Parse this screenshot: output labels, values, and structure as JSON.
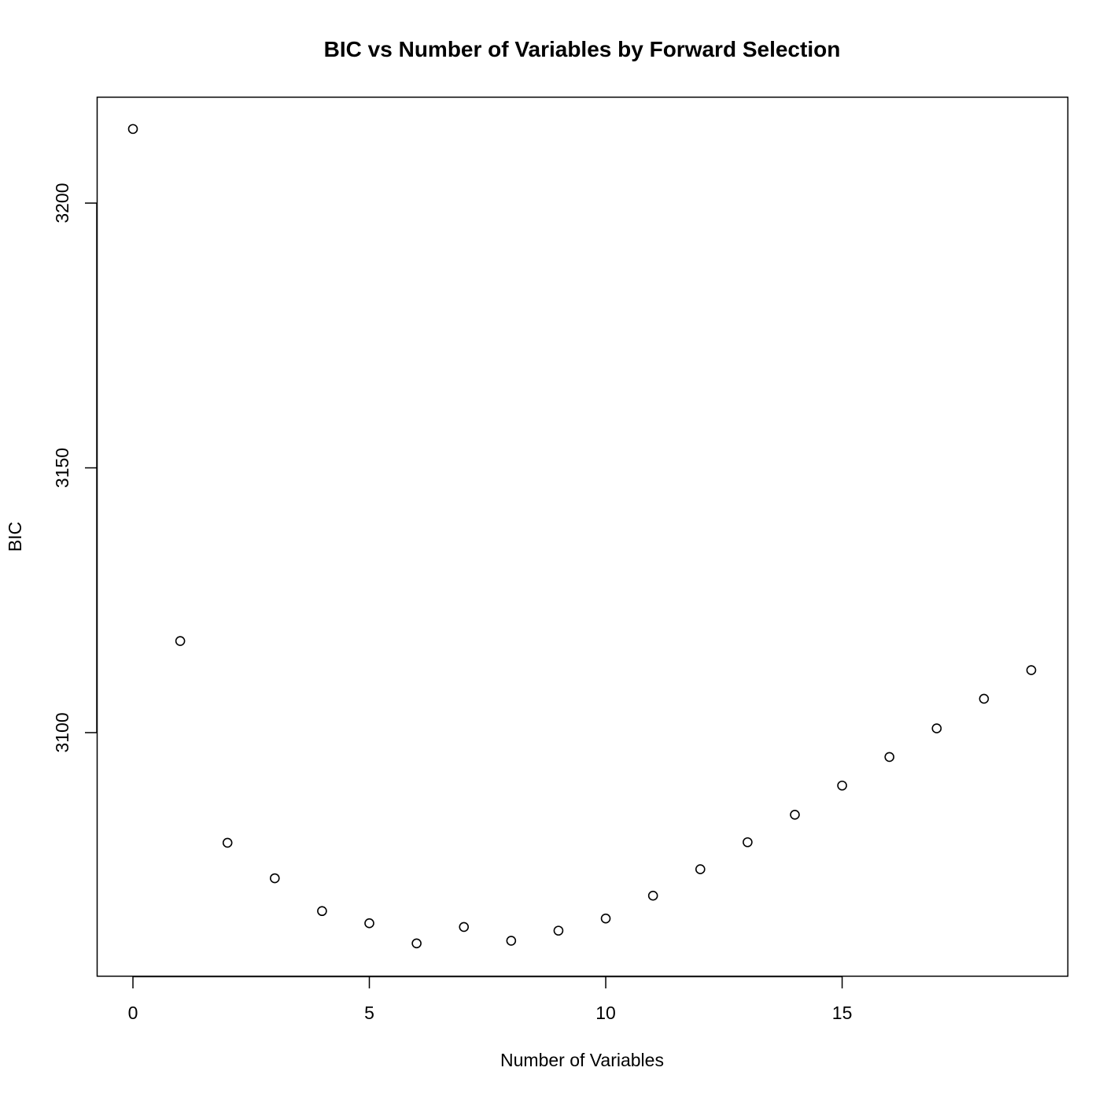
{
  "chart_data": {
    "type": "scatter",
    "title": "BIC vs Number of Variables by Forward Selection",
    "xlabel": "Number of Variables",
    "ylabel": "BIC",
    "xlim": [
      0,
      19
    ],
    "ylim": [
      3054,
      3220
    ],
    "xticks": [
      0,
      5,
      10,
      15
    ],
    "yticks": [
      3100,
      3150,
      3200
    ],
    "marker": "open-circle",
    "grid": false,
    "legend": "none",
    "colors": {
      "points": "#000000",
      "frame": "#000000",
      "background": "#ffffff"
    },
    "series": [
      {
        "x": [
          0,
          1,
          2,
          3,
          4,
          5,
          6,
          7,
          8,
          9,
          10,
          11,
          12,
          13,
          14,
          15,
          16,
          17,
          18,
          19
        ],
        "y": [
          3214,
          3117.3,
          3079.2,
          3072.5,
          3066.3,
          3064.0,
          3060.2,
          3063.3,
          3060.7,
          3062.6,
          3064.9,
          3069.2,
          3074.2,
          3079.3,
          3084.5,
          3090.0,
          3095.4,
          3100.8,
          3106.4,
          3111.8
        ]
      }
    ]
  }
}
